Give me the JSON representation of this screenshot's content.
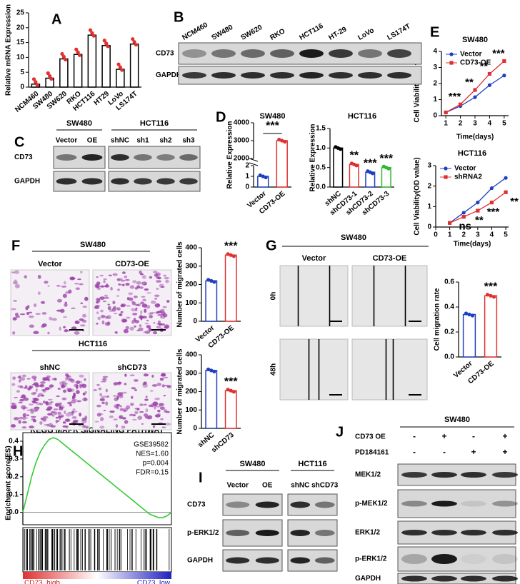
{
  "chart_data": [
    {
      "type": "bar",
      "panel": "A",
      "ylabel": "Relative mRNA Expression",
      "categories": [
        "NCM460",
        "SW480",
        "SW620",
        "RKO",
        "HCT116",
        "HT29",
        "LoVo",
        "LS174T"
      ],
      "values": [
        1,
        3,
        9.5,
        11,
        17.5,
        14,
        6,
        14.5
      ],
      "color": "#000000",
      "ylim": [
        0,
        25
      ],
      "yticks": [
        0,
        5,
        10,
        15,
        20,
        25
      ]
    },
    {
      "type": "bar",
      "panel": "D",
      "title": "SW480",
      "ylabel": "Relative Expression",
      "categories": [
        "Vector",
        "CD73-OE"
      ],
      "values": [
        1,
        3000
      ],
      "colors": [
        "#1f3fbf",
        "#e03030"
      ],
      "segments": [
        {
          "ylim": [
            0,
            2
          ],
          "yticks": [
            0,
            1,
            2
          ]
        },
        {
          "ylim": [
            2000,
            4000
          ],
          "yticks": [
            2000,
            3000,
            4000
          ]
        }
      ],
      "annotations": [
        "***"
      ]
    },
    {
      "type": "bar",
      "title": "HCT116",
      "ylabel": "Relative Expression",
      "categories": [
        "shNC",
        "shCD73-1",
        "shCD73-2",
        "shCD73-3"
      ],
      "values": [
        1,
        0.58,
        0.38,
        0.5
      ],
      "colors": [
        "#000000",
        "#e03030",
        "#1f3fbf",
        "#2fb82f"
      ],
      "ylim": [
        0,
        1.5
      ],
      "yticks": [
        {
          "value": 0,
          "label": "0.0"
        },
        {
          "value": 0.5,
          "label": "0.5"
        },
        {
          "value": 1,
          "label": "1.0"
        },
        {
          "value": 1.5,
          "label": "1.5"
        }
      ],
      "annotations": [
        "**",
        "***",
        "***"
      ]
    },
    {
      "type": "line",
      "panel": "E",
      "title": "SW480",
      "xlabel": "Time(days)",
      "ylabel": "Cell Viability(OD value)",
      "x": [
        1,
        2,
        3,
        4,
        5
      ],
      "series": [
        {
          "name": "Vector",
          "color": "#1f3fbf",
          "values": [
            0.2,
            0.6,
            1.15,
            1.9,
            2.5
          ]
        },
        {
          "name": "CD73-OE",
          "color": "#e03030",
          "values": [
            0.2,
            0.7,
            1.6,
            2.6,
            3.4
          ]
        }
      ],
      "xlim": [
        0.7,
        5.3
      ],
      "xticks": [
        1,
        2,
        3,
        4,
        5
      ],
      "ylim": [
        0,
        4
      ],
      "yticks": [
        0,
        1,
        2,
        3,
        4
      ],
      "annotations": [
        "***",
        "**",
        "**",
        "***"
      ]
    },
    {
      "type": "line",
      "title": "HCT116",
      "xlabel": "Time(days)",
      "ylabel": "Cell Viability(OD value)",
      "x": [
        1,
        2,
        3,
        4,
        5
      ],
      "series": [
        {
          "name": "Vector",
          "color": "#1f3fbf",
          "values": [
            0.2,
            0.7,
            1.2,
            1.9,
            2.4
          ]
        },
        {
          "name": "shRNA2",
          "color": "#e03030",
          "values": [
            0.2,
            0.5,
            0.8,
            1.2,
            1.7
          ]
        }
      ],
      "xlim": [
        0,
        5.2
      ],
      "xticks": [
        0,
        1,
        2,
        3,
        4,
        5
      ],
      "ylim": [
        0,
        3
      ],
      "yticks": [
        0,
        1,
        2,
        3
      ],
      "annotations": [
        "ns",
        "**",
        "***",
        "**"
      ]
    },
    {
      "type": "bar",
      "ylabel": "Number of migrated cells",
      "categories": [
        "Vector",
        "CD73-OE"
      ],
      "values": [
        220,
        360
      ],
      "colors": [
        "#1f3fbf",
        "#e03030"
      ],
      "ylim": [
        0,
        400
      ],
      "yticks": [
        0,
        100,
        200,
        300,
        400
      ],
      "annotations": [
        "***"
      ]
    },
    {
      "type": "bar",
      "ylabel": "Number of migrated cells",
      "categories": [
        "shNC",
        "shCD73"
      ],
      "values": [
        315,
        205
      ],
      "colors": [
        "#1f3fbf",
        "#e03030"
      ],
      "ylim": [
        0,
        400
      ],
      "yticks": [
        0,
        100,
        200,
        300,
        400
      ],
      "annotations": [
        "***"
      ]
    },
    {
      "type": "bar",
      "ylabel": "Cell migration rate",
      "categories": [
        "Vector",
        "CD73-OE"
      ],
      "values": [
        0.34,
        0.49
      ],
      "colors": [
        "#1f3fbf",
        "#e03030"
      ],
      "ylim": [
        0,
        0.6
      ],
      "yticks": [
        {
          "value": 0,
          "label": "0.0"
        },
        {
          "value": 0.2,
          "label": "0.2"
        },
        {
          "value": 0.4,
          "label": "0.4"
        },
        {
          "value": 0.6,
          "label": "0.6"
        }
      ],
      "annotations": [
        "***"
      ]
    },
    {
      "type": "line",
      "panel": "H",
      "title": "KEGG  MAPK  SIGNALING  PATHWAY",
      "ylabel": "Enrichment score(ES)",
      "color": "#33cc33",
      "values": [
        0,
        0.1,
        0.2,
        0.28,
        0.34,
        0.38,
        0.41,
        0.42,
        0.41,
        0.39,
        0.37,
        0.35,
        0.33,
        0.31,
        0.29,
        0.27,
        0.25,
        0.23,
        0.21,
        0.19,
        0.17,
        0.15,
        0.13,
        0.11,
        0.09,
        0.07,
        0.05,
        0.03,
        0.01,
        -0.01,
        -0.02,
        -0.03,
        -0.03,
        -0.02,
        0
      ],
      "ylim": [
        -0.07,
        0.4
      ],
      "yticks": [
        {
          "value": 0,
          "label": "0.0"
        },
        0.1,
        0.2,
        0.3,
        0.4
      ],
      "notes": [
        "GSE39582",
        "NES=1.60",
        "p=0.004",
        "FDR=0.15"
      ],
      "low_label": "CD73_high",
      "high_label": "CD73_low"
    }
  ],
  "blots": {
    "B": {
      "label": "B",
      "columns": [
        "NCM460",
        "SW480",
        "SW620",
        "RKO",
        "HCT116",
        "HT-29",
        "LoVo",
        "LS174T"
      ],
      "rows": [
        "CD73",
        "GAPDH"
      ]
    },
    "C": {
      "label": "C",
      "groups": [
        {
          "name": "SW480",
          "columns": [
            "Vector",
            "OE"
          ]
        },
        {
          "name": "HCT116",
          "columns": [
            "shNC",
            "sh1",
            "sh2",
            "sh3"
          ]
        }
      ],
      "rows": [
        "CD73",
        "GAPDH"
      ]
    },
    "I": {
      "label": "I",
      "groups": [
        {
          "name": "SW480",
          "columns": [
            "Vector",
            "OE"
          ]
        },
        {
          "name": "HCT116",
          "columns": [
            "shNC",
            "shCD73"
          ]
        }
      ],
      "rows": [
        "CD73",
        "p-ERK1/2",
        "GAPDH"
      ]
    },
    "J": {
      "label": "J",
      "title": "SW480",
      "conditions": [
        {
          "name": "CD73 OE",
          "signs": [
            "-",
            "+",
            "-",
            "+"
          ]
        },
        {
          "name": "PD184161",
          "signs": [
            "-",
            "-",
            "+",
            "+"
          ]
        }
      ],
      "rows": [
        "MEK1/2",
        "p-MEK1/2",
        "ERK1/2",
        "p-ERK1/2",
        "GAPDH"
      ]
    }
  },
  "images": {
    "F": {
      "label": "F",
      "groups": [
        {
          "name": "SW480",
          "columns": [
            "Vector",
            "CD73-OE"
          ]
        },
        {
          "name": "HCT116",
          "columns": [
            "shNC",
            "shCD73"
          ]
        }
      ]
    },
    "G": {
      "label": "G",
      "title": "SW480",
      "columns": [
        "Vector",
        "CD73-OE"
      ],
      "rows": [
        "0h",
        "48h"
      ]
    }
  }
}
